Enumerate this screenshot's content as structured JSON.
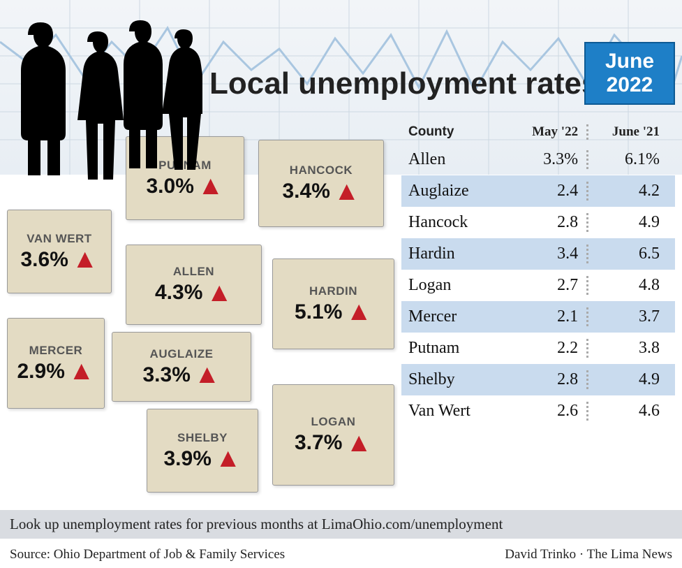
{
  "title": "Local unemployment rates",
  "date_badge": {
    "month": "June",
    "year": "2022"
  },
  "colors": {
    "county_fill": "#e3dbc3",
    "arrow": "#c41e28",
    "badge_bg": "#1e7fc7",
    "row_alt": "#c9dbee",
    "footnote_bg": "#d9dce1",
    "bg_light": "#f2f5f8"
  },
  "map": {
    "vanwert": {
      "name": "VAN WERT",
      "pct": "3.6%"
    },
    "putnam": {
      "name": "PUTNAM",
      "pct": "3.0%"
    },
    "hancock": {
      "name": "HANCOCK",
      "pct": "3.4%"
    },
    "allen": {
      "name": "ALLEN",
      "pct": "4.3%"
    },
    "hardin": {
      "name": "HARDIN",
      "pct": "5.1%"
    },
    "mercer": {
      "name": "MERCER",
      "pct": "2.9%"
    },
    "auglaize": {
      "name": "AUGLAIZE",
      "pct": "3.3%"
    },
    "shelby": {
      "name": "SHELBY",
      "pct": "3.9%"
    },
    "logan": {
      "name": "LOGAN",
      "pct": "3.7%"
    }
  },
  "table": {
    "headers": {
      "county": "County",
      "may": "May '22",
      "june": "June '21"
    },
    "rows": [
      {
        "county": "Allen",
        "may": "3.3%",
        "june": "6.1%"
      },
      {
        "county": "Auglaize",
        "may": "2.4",
        "june": "4.2"
      },
      {
        "county": "Hancock",
        "may": "2.8",
        "june": "4.9"
      },
      {
        "county": "Hardin",
        "may": "3.4",
        "june": "6.5"
      },
      {
        "county": "Logan",
        "may": "2.7",
        "june": "4.8"
      },
      {
        "county": "Mercer",
        "may": "2.1",
        "june": "3.7"
      },
      {
        "county": "Putnam",
        "may": "2.2",
        "june": "3.8"
      },
      {
        "county": "Shelby",
        "may": "2.8",
        "june": "4.9"
      },
      {
        "county": "Van Wert",
        "may": "2.6",
        "june": "4.6"
      }
    ]
  },
  "footnote": "Look up unemployment rates for previous months at LimaOhio.com/unemployment",
  "source": "Source: Ohio Department of Job & Family Services",
  "byline": "David Trinko · The Lima News",
  "bg_line_points": "0,60 40,90 80,50 120,110 160,60 200,100 240,40 280,120 320,60 360,100 400,70 440,120 480,55 520,105 560,50 600,125 640,45 680,130 720,60 760,100 800,55 840,120 880,50 920,95 960,135 977,80"
}
